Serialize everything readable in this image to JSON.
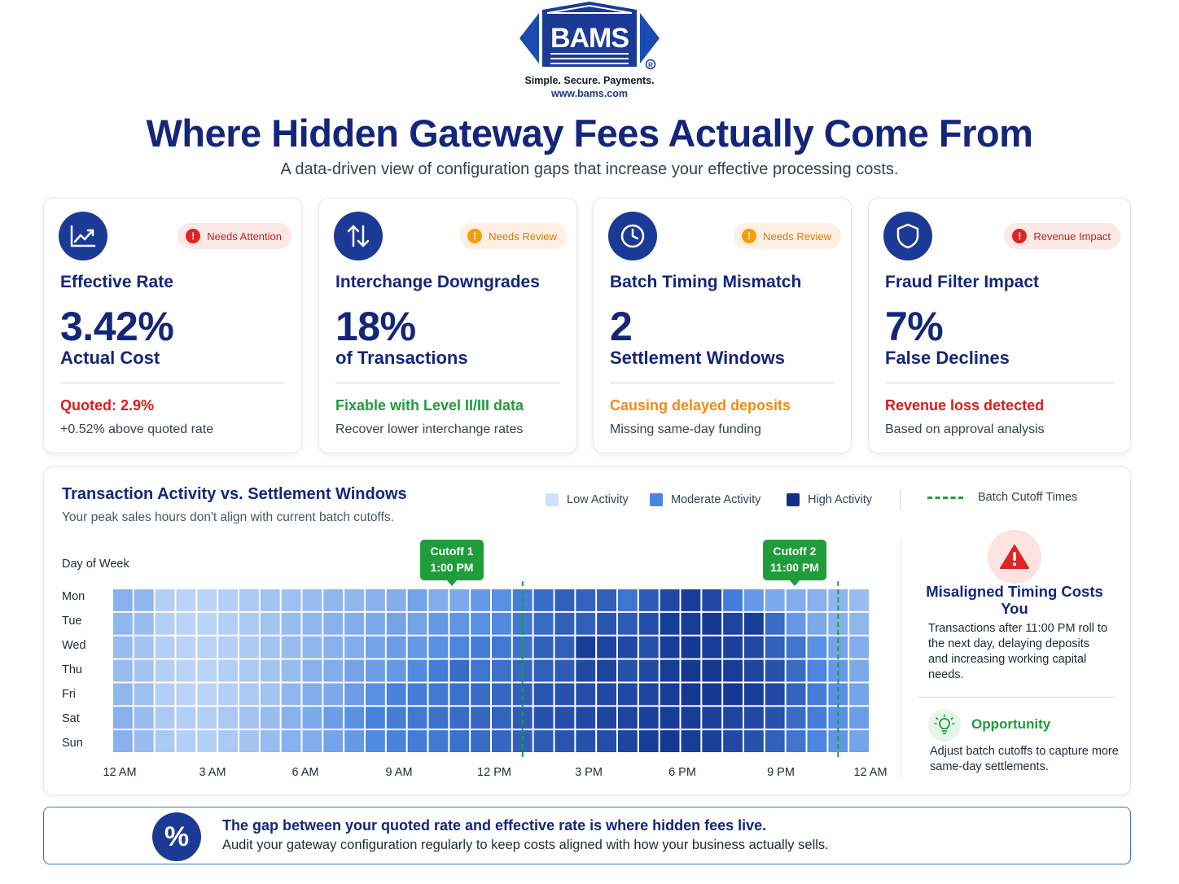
{
  "brand": {
    "logo_text": "BAMS",
    "registered_mark": "®",
    "tagline": "Simple. Secure. Payments.",
    "website": "www.bams.com",
    "color": "#1a3a96"
  },
  "header": {
    "title": "Where Hidden Gateway Fees Actually Come From",
    "subtitle": "A data-driven view of configuration gaps that increase your effective processing costs."
  },
  "cards": [
    {
      "icon": "trend-chart-icon",
      "badge": "Needs Attention",
      "badge_type": "red",
      "title": "Effective Rate",
      "value": "3.42%",
      "unit": "Actual Cost",
      "note": "Quoted: 2.9%",
      "note_color": "#d91c1c",
      "detail": "+0.52% above quoted rate"
    },
    {
      "icon": "swap-arrows-icon",
      "badge": "Needs Review",
      "badge_type": "orange",
      "title": "Interchange Downgrades",
      "value": "18%",
      "unit": "of Transactions",
      "note": "Fixable with Level II/III data",
      "note_color": "#1f9d3a",
      "detail": "Recover lower interchange rates"
    },
    {
      "icon": "clock-icon",
      "badge": "Needs Review",
      "badge_type": "orange",
      "title": "Batch Timing Mismatch",
      "value": "2",
      "unit": "Settlement Windows",
      "note": "Causing delayed deposits",
      "note_color": "#ef8a15",
      "detail": "Missing same-day funding"
    },
    {
      "icon": "shield-icon",
      "badge": "Revenue Impact",
      "badge_type": "red",
      "title": "Fraud Filter Impact",
      "value": "7%",
      "unit": "False Declines",
      "note": "Revenue loss detected",
      "note_color": "#d91c1c",
      "detail": "Based on approval analysis"
    }
  ],
  "panel": {
    "title": "Transaction Activity vs. Settlement Windows",
    "subtitle": "Your peak sales hours don't align with current batch cutoffs.",
    "legend": {
      "low": "Low Activity",
      "moderate": "Moderate Activity",
      "high": "High Activity",
      "cutoff": "Batch Cutoff Times",
      "colors": {
        "low": "#cfe1fa",
        "moderate": "#4a86e0",
        "high": "#0f2f8a",
        "cutoff": "#1f9d3a"
      }
    },
    "cutoffs": [
      {
        "line1": "Cutoff 1",
        "line2": "1:00 PM"
      },
      {
        "line1": "Cutoff 2",
        "line2": "11:00 PM"
      }
    ],
    "side": {
      "alert_title": "Misaligned Timing Costs You",
      "alert_text": "Transactions after 11:00 PM roll to the next day, delaying deposits and increasing working capital needs.",
      "opportunity_title": "Opportunity",
      "opportunity_text": "Adjust batch cutoffs to capture more same-day settlements."
    }
  },
  "chart_data": {
    "type": "heatmap",
    "title": "Transaction Activity vs. Settlement Windows",
    "ylabel": "Day of Week",
    "rows": [
      "Mon",
      "Tue",
      "Wed",
      "Thu",
      "Fri",
      "Sat",
      "Sun"
    ],
    "x_tick_labels": [
      "12 AM",
      "3 AM",
      "6 AM",
      "9 AM",
      "12 PM",
      "3 PM",
      "6 PM",
      "9 PM",
      "12 AM"
    ],
    "columns_per_hour": 1.5,
    "scale": "intensity 0-1 (Low → Moderate → High Activity)",
    "values": [
      [
        0.28,
        0.25,
        0.12,
        0.1,
        0.1,
        0.12,
        0.15,
        0.18,
        0.2,
        0.22,
        0.25,
        0.25,
        0.28,
        0.3,
        0.35,
        0.3,
        0.32,
        0.4,
        0.45,
        0.55,
        0.65,
        0.72,
        0.7,
        0.72,
        0.6,
        0.75,
        0.85,
        0.92,
        0.85,
        0.55,
        0.4,
        0.32,
        0.3,
        0.28,
        0.25,
        0.22
      ],
      [
        0.25,
        0.22,
        0.12,
        0.1,
        0.1,
        0.12,
        0.15,
        0.18,
        0.22,
        0.25,
        0.28,
        0.3,
        0.32,
        0.35,
        0.35,
        0.4,
        0.42,
        0.45,
        0.48,
        0.58,
        0.65,
        0.72,
        0.72,
        0.78,
        0.75,
        0.82,
        0.92,
        0.92,
        0.95,
        0.88,
        0.92,
        0.65,
        0.4,
        0.32,
        0.28,
        0.25
      ],
      [
        0.22,
        0.18,
        0.12,
        0.1,
        0.1,
        0.12,
        0.15,
        0.18,
        0.22,
        0.25,
        0.28,
        0.3,
        0.35,
        0.38,
        0.4,
        0.45,
        0.5,
        0.55,
        0.58,
        0.62,
        0.72,
        0.72,
        0.92,
        0.88,
        0.85,
        0.8,
        0.92,
        0.95,
        0.92,
        0.9,
        0.85,
        0.72,
        0.6,
        0.45,
        0.35,
        0.3
      ],
      [
        0.22,
        0.18,
        0.12,
        0.1,
        0.1,
        0.12,
        0.15,
        0.18,
        0.22,
        0.28,
        0.3,
        0.35,
        0.38,
        0.4,
        0.48,
        0.55,
        0.65,
        0.6,
        0.62,
        0.68,
        0.72,
        0.75,
        0.85,
        0.88,
        0.8,
        0.85,
        0.92,
        0.95,
        0.95,
        0.92,
        0.88,
        0.8,
        0.65,
        0.5,
        0.4,
        0.32
      ],
      [
        0.25,
        0.2,
        0.12,
        0.1,
        0.1,
        0.12,
        0.15,
        0.18,
        0.25,
        0.3,
        0.32,
        0.38,
        0.45,
        0.52,
        0.55,
        0.58,
        0.62,
        0.65,
        0.68,
        0.72,
        0.78,
        0.8,
        0.82,
        0.85,
        0.85,
        0.88,
        0.92,
        0.95,
        0.95,
        0.95,
        0.92,
        0.85,
        0.7,
        0.55,
        0.45,
        0.35
      ],
      [
        0.28,
        0.22,
        0.15,
        0.12,
        0.12,
        0.15,
        0.18,
        0.22,
        0.28,
        0.32,
        0.38,
        0.45,
        0.52,
        0.55,
        0.58,
        0.62,
        0.65,
        0.68,
        0.7,
        0.75,
        0.8,
        0.82,
        0.85,
        0.88,
        0.88,
        0.9,
        0.92,
        0.92,
        0.9,
        0.88,
        0.85,
        0.8,
        0.65,
        0.55,
        0.45,
        0.38
      ],
      [
        0.28,
        0.22,
        0.15,
        0.12,
        0.12,
        0.15,
        0.18,
        0.22,
        0.28,
        0.3,
        0.35,
        0.4,
        0.48,
        0.52,
        0.55,
        0.58,
        0.62,
        0.65,
        0.68,
        0.72,
        0.75,
        0.78,
        0.8,
        0.82,
        0.88,
        0.92,
        0.95,
        0.92,
        0.9,
        0.85,
        0.8,
        0.72,
        0.6,
        0.5,
        0.42,
        0.35
      ]
    ],
    "cutoff_lines": [
      {
        "label": "Cutoff 1",
        "time": "1:00 PM",
        "hour": 13
      },
      {
        "label": "Cutoff 2",
        "time": "11:00 PM",
        "hour": 23
      }
    ]
  },
  "banner": {
    "icon_glyph": "%",
    "title": "The gap between your quoted rate and effective rate is where hidden fees live.",
    "text": "Audit your gateway configuration regularly to keep costs aligned with how your business actually sells."
  }
}
